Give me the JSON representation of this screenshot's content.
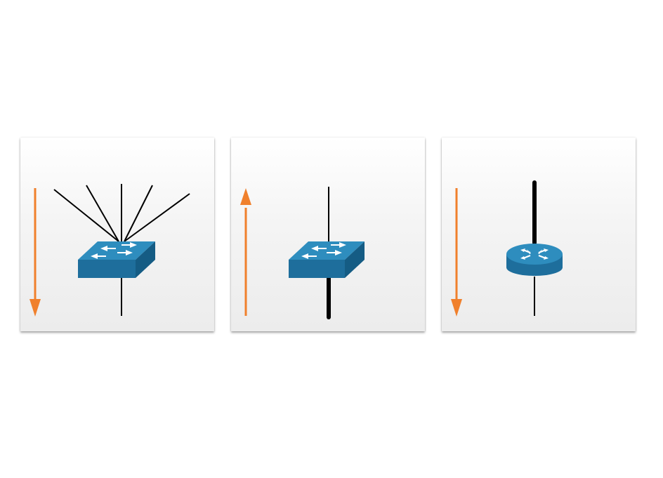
{
  "colors": {
    "arrow": "#F0802C",
    "device_top": "#2E8DBE",
    "device_front": "#1E6E9C",
    "device_side": "#155C84",
    "link": "#000000",
    "panel_background": "#F2F2F2"
  },
  "panels": [
    {
      "device": "switch-icon",
      "arrow": "down",
      "links_above": 5,
      "links_below": 1,
      "uplink": "thin"
    },
    {
      "device": "switch-icon",
      "arrow": "up",
      "links_above": 1,
      "links_below": 1,
      "uplink": "thick"
    },
    {
      "device": "router-icon",
      "arrow": "down",
      "links_above": 1,
      "links_below": 1,
      "uplink": "thick"
    }
  ]
}
